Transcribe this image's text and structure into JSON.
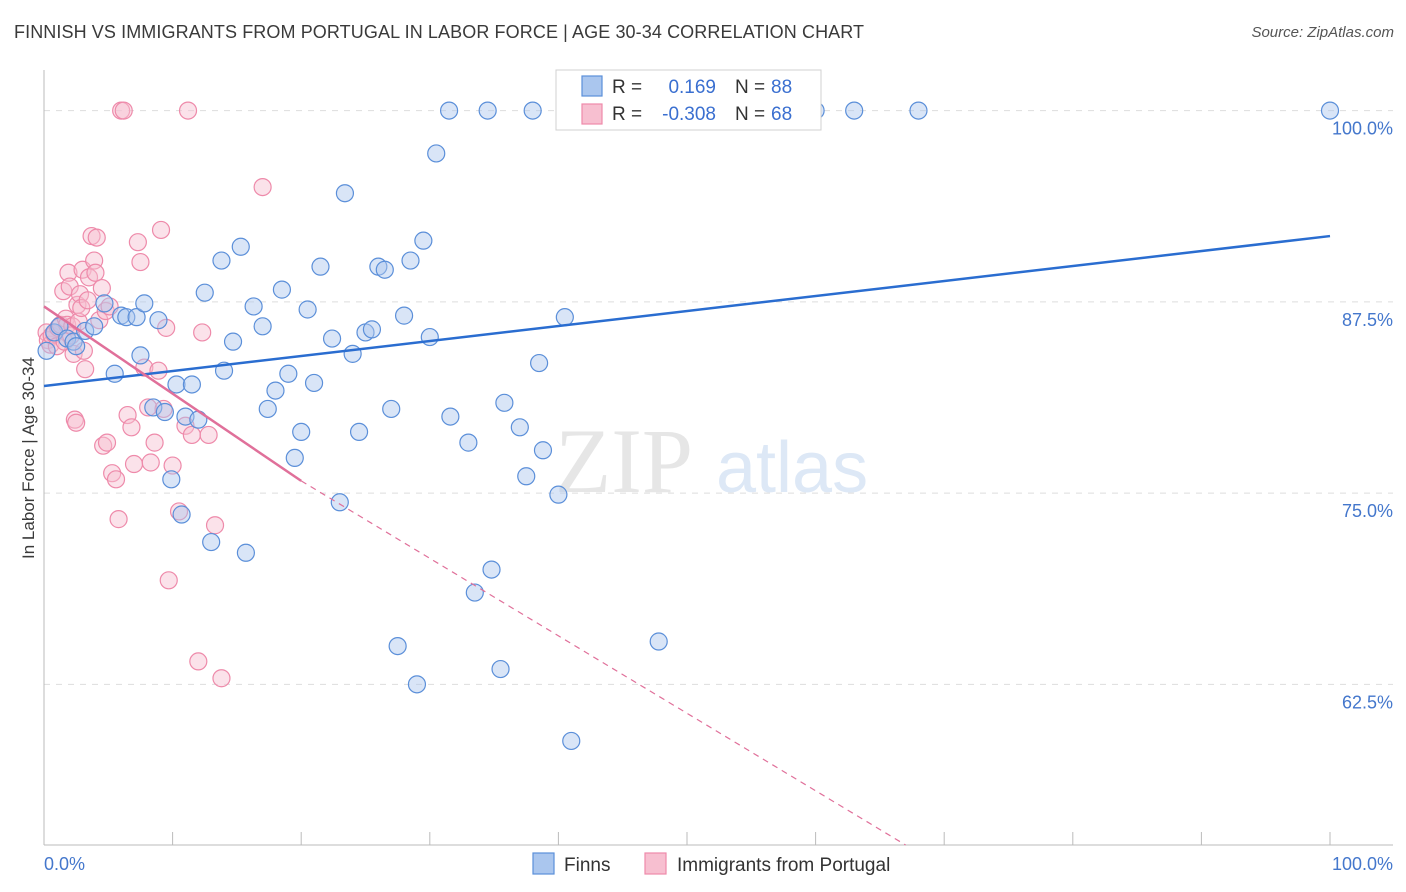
{
  "header": {
    "title": "FINNISH VS IMMIGRANTS FROM PORTUGAL IN LABOR FORCE | AGE 30-34 CORRELATION CHART",
    "source": "Source: ZipAtlas.com"
  },
  "colors": {
    "finns": "#5b8fd9",
    "finns_fill": "#aac6ee",
    "finns_line": "#2a6dd0",
    "portugal": "#ee8aaa",
    "portugal_fill": "#f7bfd0",
    "portugal_line": "#e0709a",
    "tick": "#4477cc",
    "grid": "#dddddd"
  },
  "chart_data": {
    "type": "scatter",
    "title": "FINNISH VS IMMIGRANTS FROM PORTUGAL IN LABOR FORCE | AGE 30-34 CORRELATION CHART",
    "xlabel": "",
    "ylabel": "In Labor Force | Age 30-34",
    "xlim": [
      0,
      100
    ],
    "ylim": [
      52,
      102
    ],
    "x_tick_labels": [
      "0.0%",
      "100.0%"
    ],
    "y_ticks": [
      62.5,
      75.0,
      87.5,
      100.0
    ],
    "y_tick_labels": [
      "62.5%",
      "75.0%",
      "87.5%",
      "100.0%"
    ],
    "grid": true,
    "watermark": {
      "part1": "ZIP",
      "part2": "atlas"
    },
    "legend": {
      "entries": [
        {
          "label_r": "R =",
          "r": "0.169",
          "label_n": "N =",
          "n": "88"
        },
        {
          "label_r": "R =",
          "r": "-0.308",
          "label_n": "N =",
          "n": "68"
        }
      ]
    },
    "series": [
      {
        "name": "Finns",
        "r": 0.169,
        "n": 88,
        "trend": {
          "x0": 0,
          "y0": 82.0,
          "x1": 100,
          "y1": 91.8,
          "dashed_to": null
        },
        "points": [
          [
            0.2,
            84.3
          ],
          [
            0.8,
            85.5
          ],
          [
            1.2,
            85.9
          ],
          [
            1.8,
            85.1
          ],
          [
            2.3,
            84.9
          ],
          [
            2.5,
            84.6
          ],
          [
            3.2,
            85.6
          ],
          [
            3.9,
            85.9
          ],
          [
            4.7,
            87.4
          ],
          [
            5.5,
            82.8
          ],
          [
            6.0,
            86.6
          ],
          [
            6.4,
            86.5
          ],
          [
            7.2,
            86.5
          ],
          [
            7.5,
            84.0
          ],
          [
            7.8,
            87.4
          ],
          [
            8.5,
            80.6
          ],
          [
            8.9,
            86.3
          ],
          [
            9.4,
            80.3
          ],
          [
            9.9,
            75.9
          ],
          [
            10.3,
            82.1
          ],
          [
            10.7,
            73.6
          ],
          [
            11.0,
            80.0
          ],
          [
            11.5,
            82.1
          ],
          [
            12.0,
            79.8
          ],
          [
            12.5,
            88.1
          ],
          [
            13.0,
            71.8
          ],
          [
            13.8,
            90.2
          ],
          [
            14.0,
            83.0
          ],
          [
            14.7,
            84.9
          ],
          [
            15.3,
            91.1
          ],
          [
            15.7,
            71.1
          ],
          [
            16.3,
            87.2
          ],
          [
            17.0,
            85.9
          ],
          [
            17.4,
            80.5
          ],
          [
            18.0,
            81.7
          ],
          [
            18.5,
            88.3
          ],
          [
            19.0,
            82.8
          ],
          [
            19.5,
            77.3
          ],
          [
            20.0,
            79.0
          ],
          [
            20.5,
            87.0
          ],
          [
            21.0,
            82.2
          ],
          [
            21.5,
            89.8
          ],
          [
            22.4,
            85.1
          ],
          [
            23.0,
            74.4
          ],
          [
            23.4,
            94.6
          ],
          [
            24.0,
            84.1
          ],
          [
            24.5,
            79.0
          ],
          [
            25.0,
            85.5
          ],
          [
            25.5,
            85.7
          ],
          [
            26.0,
            89.8
          ],
          [
            26.5,
            89.6
          ],
          [
            27.0,
            80.5
          ],
          [
            27.5,
            65.0
          ],
          [
            28.0,
            86.6
          ],
          [
            28.5,
            90.2
          ],
          [
            29.0,
            62.5
          ],
          [
            29.5,
            91.5
          ],
          [
            30.0,
            85.2
          ],
          [
            30.5,
            97.2
          ],
          [
            31.5,
            100.0
          ],
          [
            31.6,
            80.0
          ],
          [
            33.0,
            78.3
          ],
          [
            33.5,
            68.5
          ],
          [
            34.5,
            100.0
          ],
          [
            34.8,
            70.0
          ],
          [
            35.5,
            63.5
          ],
          [
            35.8,
            80.9
          ],
          [
            37.0,
            79.3
          ],
          [
            37.5,
            76.1
          ],
          [
            38.0,
            100.0
          ],
          [
            38.5,
            83.5
          ],
          [
            38.8,
            77.8
          ],
          [
            40.0,
            74.9
          ],
          [
            40.5,
            86.5
          ],
          [
            41.0,
            58.8
          ],
          [
            42.0,
            100.0
          ],
          [
            42.5,
            100.0
          ],
          [
            43.5,
            100.0
          ],
          [
            44.0,
            100.0
          ],
          [
            46.0,
            100.0
          ],
          [
            47.0,
            100.0
          ],
          [
            47.8,
            65.3
          ],
          [
            54.0,
            100.0
          ],
          [
            57.0,
            100.0
          ],
          [
            60.0,
            100.0
          ],
          [
            63.0,
            100.0
          ],
          [
            68.0,
            100.0
          ],
          [
            100.0,
            100.0
          ]
        ]
      },
      {
        "name": "Immigrants from Portugal",
        "r": -0.308,
        "n": 68,
        "trend": {
          "x0": 0,
          "y0": 87.2,
          "x1": 20.0,
          "y1": 75.8,
          "dashed_to": {
            "x": 67.0,
            "y": 52.0
          }
        },
        "points": [
          [
            0.2,
            85.5
          ],
          [
            0.3,
            85.0
          ],
          [
            0.5,
            84.7
          ],
          [
            0.6,
            85.3
          ],
          [
            0.8,
            85.4
          ],
          [
            1.0,
            84.6
          ],
          [
            1.1,
            85.8
          ],
          [
            1.3,
            86.0
          ],
          [
            1.5,
            88.2
          ],
          [
            1.6,
            84.9
          ],
          [
            1.7,
            86.4
          ],
          [
            1.8,
            86.0
          ],
          [
            1.9,
            89.4
          ],
          [
            2.0,
            88.5
          ],
          [
            2.1,
            85.3
          ],
          [
            2.2,
            85.9
          ],
          [
            2.3,
            84.1
          ],
          [
            2.4,
            79.8
          ],
          [
            2.5,
            79.6
          ],
          [
            2.6,
            87.3
          ],
          [
            2.7,
            86.2
          ],
          [
            2.8,
            88.0
          ],
          [
            2.9,
            87.1
          ],
          [
            3.0,
            89.6
          ],
          [
            3.1,
            84.3
          ],
          [
            3.2,
            83.1
          ],
          [
            3.4,
            87.6
          ],
          [
            3.5,
            89.1
          ],
          [
            3.7,
            91.8
          ],
          [
            3.9,
            90.2
          ],
          [
            4.0,
            89.4
          ],
          [
            4.1,
            91.7
          ],
          [
            4.3,
            86.3
          ],
          [
            4.5,
            88.4
          ],
          [
            4.6,
            78.1
          ],
          [
            4.8,
            86.9
          ],
          [
            4.9,
            78.3
          ],
          [
            5.1,
            87.2
          ],
          [
            5.3,
            76.3
          ],
          [
            5.6,
            75.9
          ],
          [
            5.8,
            73.3
          ],
          [
            6.0,
            100.0
          ],
          [
            6.2,
            100.0
          ],
          [
            6.5,
            80.1
          ],
          [
            6.8,
            79.3
          ],
          [
            7.0,
            76.9
          ],
          [
            7.3,
            91.4
          ],
          [
            7.5,
            90.1
          ],
          [
            7.8,
            83.2
          ],
          [
            8.1,
            80.6
          ],
          [
            8.3,
            77.0
          ],
          [
            8.6,
            78.3
          ],
          [
            8.9,
            83.0
          ],
          [
            9.1,
            92.2
          ],
          [
            9.3,
            80.5
          ],
          [
            9.5,
            85.8
          ],
          [
            9.7,
            69.3
          ],
          [
            10.0,
            76.8
          ],
          [
            10.5,
            73.8
          ],
          [
            11.0,
            79.4
          ],
          [
            11.2,
            100.0
          ],
          [
            11.5,
            78.8
          ],
          [
            12.0,
            64.0
          ],
          [
            12.3,
            85.5
          ],
          [
            12.8,
            78.8
          ],
          [
            13.3,
            72.9
          ],
          [
            13.8,
            62.9
          ],
          [
            17.0,
            95.0
          ]
        ]
      }
    ]
  },
  "bottom_legend": {
    "items": [
      "Finns",
      "Immigrants from Portugal"
    ]
  }
}
